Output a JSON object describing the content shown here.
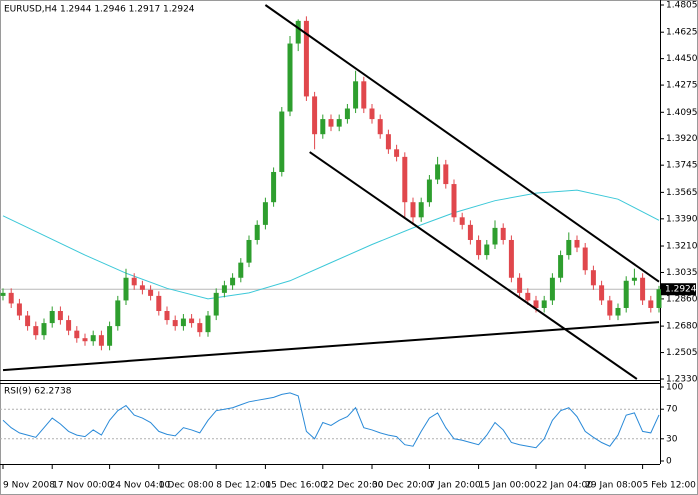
{
  "chart_data": [
    {
      "type": "candlestick",
      "title": "EURUSD,H4 1.2944 1.2946 1.2917 1.2924",
      "categories": [
        "9 Nov 2008",
        null,
        null,
        null,
        null,
        null,
        "17 Nov 00:00",
        null,
        null,
        null,
        null,
        null,
        null,
        "24 Nov 04:00",
        null,
        null,
        null,
        null,
        null,
        "1 Dec 08:00",
        null,
        null,
        null,
        null,
        null,
        null,
        "8 Dec 12:00",
        null,
        null,
        null,
        null,
        null,
        "15 Dec 16:00",
        null,
        null,
        null,
        null,
        null,
        null,
        "22 Dec 20:00",
        null,
        null,
        null,
        null,
        null,
        "30 Dec 20:00",
        null,
        null,
        null,
        null,
        null,
        null,
        "7 Jan 20:00",
        null,
        null,
        null,
        null,
        null,
        "15 Jan 00:00",
        null,
        null,
        null,
        null,
        null,
        null,
        "22 Jan 04:00",
        null,
        null,
        null,
        null,
        null,
        "29 Jan 08:00",
        null,
        null,
        null,
        null,
        null,
        null,
        "5 Feb 12:00",
        null,
        null
      ],
      "open": [
        1.288,
        1.29,
        1.283,
        1.275,
        1.268,
        1.262,
        1.27,
        1.278,
        1.272,
        1.265,
        1.26,
        1.258,
        1.262,
        1.255,
        1.268,
        1.285,
        1.3,
        1.295,
        1.292,
        1.288,
        1.278,
        1.272,
        1.268,
        1.273,
        1.27,
        1.264,
        1.275,
        1.29,
        1.295,
        1.3,
        1.31,
        1.325,
        1.335,
        1.35,
        1.37,
        1.41,
        1.455,
        1.47,
        1.42,
        1.395,
        1.405,
        1.4,
        1.405,
        1.412,
        1.43,
        1.412,
        1.405,
        1.395,
        1.385,
        1.38,
        1.35,
        1.34,
        1.35,
        1.365,
        1.375,
        1.362,
        1.34,
        1.335,
        1.325,
        1.315,
        1.322,
        1.333,
        1.325,
        1.3,
        1.29,
        1.285,
        1.28,
        1.285,
        1.3,
        1.315,
        1.325,
        1.32,
        1.305,
        1.295,
        1.285,
        1.275,
        1.28,
        1.298,
        1.3,
        1.285,
        1.28
      ],
      "high": [
        1.293,
        1.293,
        1.286,
        1.278,
        1.271,
        1.273,
        1.281,
        1.281,
        1.275,
        1.268,
        1.263,
        1.265,
        1.265,
        1.271,
        1.288,
        1.306,
        1.303,
        1.298,
        1.295,
        1.291,
        1.281,
        1.275,
        1.276,
        1.276,
        1.273,
        1.278,
        1.293,
        1.298,
        1.303,
        1.313,
        1.328,
        1.338,
        1.353,
        1.373,
        1.413,
        1.46,
        1.471,
        1.473,
        1.423,
        1.408,
        1.408,
        1.408,
        1.415,
        1.437,
        1.433,
        1.415,
        1.408,
        1.398,
        1.388,
        1.383,
        1.353,
        1.353,
        1.368,
        1.38,
        1.378,
        1.365,
        1.343,
        1.338,
        1.328,
        1.325,
        1.338,
        1.336,
        1.328,
        1.303,
        1.293,
        1.288,
        1.288,
        1.303,
        1.318,
        1.33,
        1.328,
        1.323,
        1.308,
        1.298,
        1.288,
        1.283,
        1.301,
        1.306,
        1.303,
        1.288,
        1.2946
      ],
      "low": [
        1.285,
        1.28,
        1.272,
        1.265,
        1.259,
        1.259,
        1.267,
        1.269,
        1.262,
        1.257,
        1.255,
        1.255,
        1.252,
        1.252,
        1.265,
        1.282,
        1.292,
        1.289,
        1.285,
        1.275,
        1.269,
        1.265,
        1.265,
        1.267,
        1.261,
        1.261,
        1.272,
        1.287,
        1.292,
        1.297,
        1.307,
        1.322,
        1.332,
        1.347,
        1.367,
        1.407,
        1.45,
        1.417,
        1.385,
        1.392,
        1.397,
        1.397,
        1.402,
        1.409,
        1.409,
        1.402,
        1.392,
        1.382,
        1.377,
        1.34,
        1.335,
        1.337,
        1.347,
        1.362,
        1.359,
        1.337,
        1.332,
        1.322,
        1.312,
        1.312,
        1.319,
        1.322,
        1.297,
        1.287,
        1.282,
        1.277,
        1.277,
        1.282,
        1.297,
        1.312,
        1.317,
        1.302,
        1.292,
        1.282,
        1.272,
        1.272,
        1.277,
        1.295,
        1.282,
        1.277,
        1.277
      ],
      "close": [
        1.29,
        1.283,
        1.275,
        1.268,
        1.262,
        1.27,
        1.278,
        1.272,
        1.265,
        1.26,
        1.258,
        1.262,
        1.255,
        1.268,
        1.285,
        1.3,
        1.295,
        1.292,
        1.288,
        1.278,
        1.272,
        1.268,
        1.273,
        1.27,
        1.264,
        1.275,
        1.29,
        1.295,
        1.3,
        1.31,
        1.325,
        1.335,
        1.35,
        1.37,
        1.41,
        1.455,
        1.47,
        1.42,
        1.395,
        1.405,
        1.4,
        1.405,
        1.412,
        1.43,
        1.412,
        1.405,
        1.395,
        1.385,
        1.38,
        1.35,
        1.34,
        1.35,
        1.365,
        1.375,
        1.362,
        1.34,
        1.335,
        1.325,
        1.315,
        1.322,
        1.333,
        1.325,
        1.3,
        1.29,
        1.285,
        1.28,
        1.285,
        1.3,
        1.315,
        1.325,
        1.32,
        1.305,
        1.295,
        1.285,
        1.275,
        1.28,
        1.298,
        1.3,
        1.285,
        1.28,
        1.2924
      ],
      "up_color": "#2e9e2e",
      "down_color": "#e0474c",
      "ma": {
        "x": [
          0,
          5,
          10,
          15,
          20,
          25,
          30,
          35,
          40,
          45,
          50,
          55,
          60,
          65,
          70,
          75,
          80
        ],
        "values": [
          1.341,
          1.328,
          1.315,
          1.303,
          1.293,
          1.286,
          1.29,
          1.298,
          1.31,
          1.322,
          1.333,
          1.343,
          1.351,
          1.356,
          1.358,
          1.352,
          1.338
        ],
        "color": "#3cc8d8"
      },
      "trendlines": [
        {
          "x": [
            32,
            80
          ],
          "y": [
            1.4805,
            1.2974
          ]
        },
        {
          "x": [
            37.4,
            77.3
          ],
          "y": [
            1.3832,
            1.233
          ]
        },
        {
          "x": [
            0,
            80
          ],
          "y": [
            1.2389,
            1.2706
          ]
        }
      ],
      "trendline_color": "#000000",
      "ylim": [
        1.233,
        1.4805
      ],
      "yticks": [
        1.4805,
        1.4625,
        {
          "value": 1.445,
          "label": "1.4450"
        },
        1.4275,
        1.4095,
        {
          "value": 1.392,
          "label": "1.3920"
        },
        1.3745,
        1.3565,
        {
          "value": 1.339,
          "label": "1.3390"
        },
        {
          "value": 1.321,
          "label": "1.3210"
        },
        1.3035,
        {
          "value": 1.286,
          "label": "1.2860"
        },
        {
          "value": 1.268,
          "label": "1.2680"
        },
        1.2505,
        {
          "value": 1.233,
          "label": "1.2330"
        }
      ]
    },
    {
      "type": "line",
      "title": "RSI(9) 62.2738",
      "series": [
        {
          "color": "#2a8ad8",
          "values": [
            55,
            45,
            38,
            35,
            32,
            45,
            58,
            50,
            40,
            35,
            33,
            42,
            35,
            55,
            68,
            75,
            62,
            58,
            52,
            40,
            36,
            34,
            45,
            42,
            38,
            55,
            68,
            70,
            72,
            76,
            80,
            82,
            84,
            86,
            90,
            92,
            88,
            40,
            30,
            52,
            48,
            55,
            60,
            72,
            45,
            42,
            38,
            35,
            33,
            22,
            20,
            40,
            58,
            65,
            45,
            30,
            28,
            25,
            22,
            35,
            52,
            42,
            25,
            22,
            20,
            18,
            30,
            55,
            68,
            72,
            60,
            40,
            32,
            25,
            20,
            35,
            62,
            65,
            40,
            38,
            62.2738
          ]
        }
      ],
      "ylim": [
        0,
        100
      ],
      "yticks": [
        100,
        70,
        30,
        0
      ],
      "levels": [
        70,
        30
      ]
    }
  ]
}
